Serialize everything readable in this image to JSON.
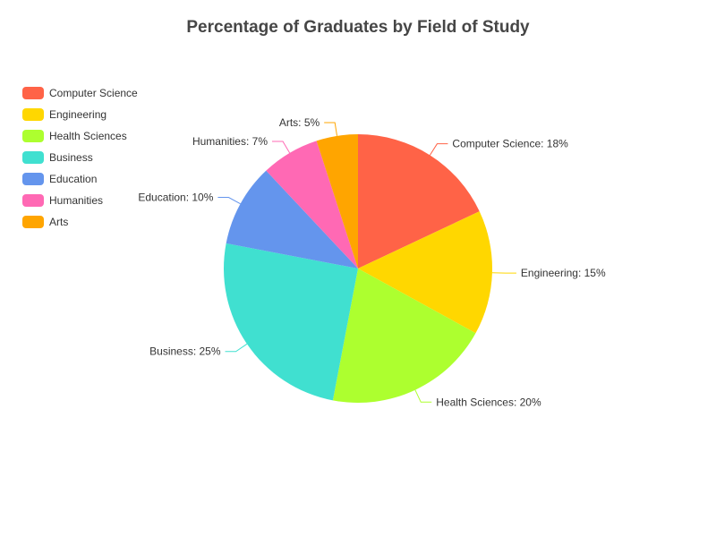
{
  "chart_data": {
    "type": "pie",
    "title": "Percentage of Graduates by Field of Study",
    "legend_position": "left",
    "slices": [
      {
        "label": "Computer Science",
        "value": 18,
        "color": "#FF6347",
        "data_label": "Computer Science: 18%"
      },
      {
        "label": "Engineering",
        "value": 15,
        "color": "#FFD700",
        "data_label": "Engineering: 15%"
      },
      {
        "label": "Health Sciences",
        "value": 20,
        "color": "#ADFF2F",
        "data_label": "Health Sciences: 20%"
      },
      {
        "label": "Business",
        "value": 25,
        "color": "#40E0D0",
        "data_label": "Business: 25%"
      },
      {
        "label": "Education",
        "value": 10,
        "color": "#6495ED",
        "data_label": "Education: 10%"
      },
      {
        "label": "Humanities",
        "value": 7,
        "color": "#FF69B4",
        "data_label": "Humanities: 7%"
      },
      {
        "label": "Arts",
        "value": 5,
        "color": "#FFA500",
        "data_label": "Arts: 5%"
      }
    ]
  }
}
